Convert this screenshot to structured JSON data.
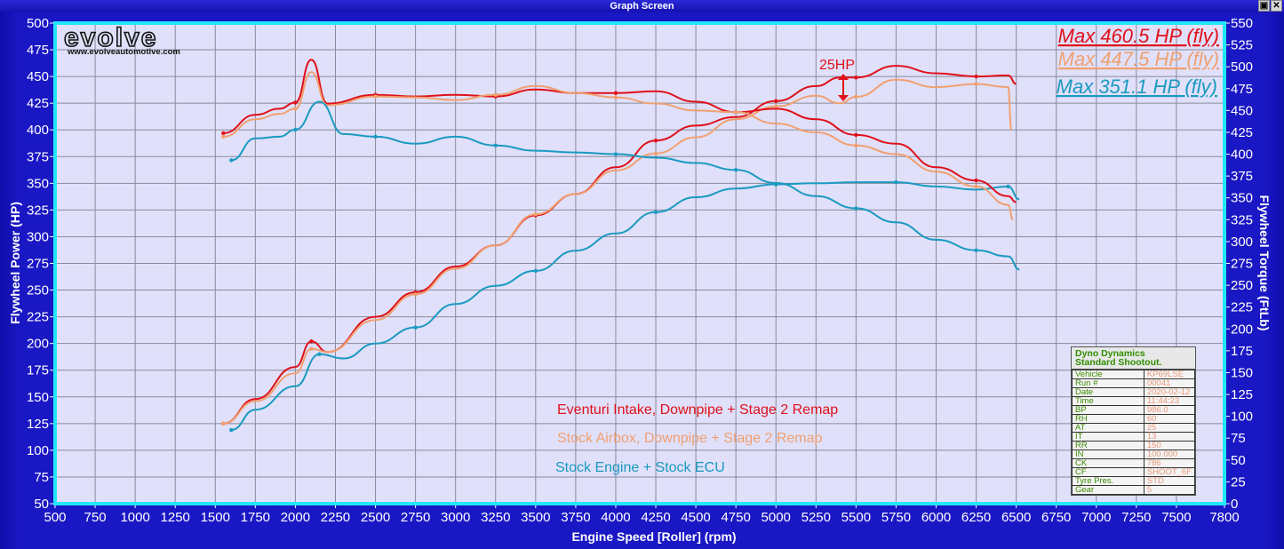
{
  "window": {
    "title": "Graph Screen",
    "controls": [
      "restore",
      "close"
    ]
  },
  "brand": {
    "logo_text": "evolve",
    "url": "www.evolveautomotive.com"
  },
  "annotation": {
    "label": "25HP",
    "arrow": "double-arrow",
    "color": "#e0101a"
  },
  "max_labels": [
    {
      "text": "Max 460.5 HP (fly)",
      "color": "#e0101a"
    },
    {
      "text": "Max 447.5 HP (fly)",
      "color": "#f0a070"
    },
    {
      "text": "Max 351.1 HP (fly)",
      "color": "#1a9ac0"
    }
  ],
  "legend": [
    {
      "text": "Eventuri Intake, Downpipe + Stage 2 Remap",
      "color": "#e0101a"
    },
    {
      "text": "Stock Airbox, Downpipe + Stage 2 Remap",
      "color": "#f0a070"
    },
    {
      "text": "Stock Engine + Stock ECU",
      "color": "#1a9ac0"
    }
  ],
  "info_box": {
    "title_line1": "Dyno Dynamics",
    "title_line2": "Standard Shootout.",
    "rows": [
      {
        "key": "Vehicle",
        "value": "KP69LSE"
      },
      {
        "key": "Run #",
        "value": "00041"
      },
      {
        "key": "Date",
        "value": "2020-02-12"
      },
      {
        "key": "Time",
        "value": "11:44:23"
      },
      {
        "key": "BP",
        "value": "986.0"
      },
      {
        "key": "RH",
        "value": "60"
      },
      {
        "key": "AT",
        "value": "25"
      },
      {
        "key": "IT",
        "value": "13"
      },
      {
        "key": "RR",
        "value": "150"
      },
      {
        "key": "IN",
        "value": "100.000"
      },
      {
        "key": "CK",
        "value": "786"
      },
      {
        "key": "CF",
        "value": "SHOOT_6F"
      },
      {
        "key": "Tyre Pres.",
        "value": "STD"
      },
      {
        "key": "Gear",
        "value": "5"
      }
    ]
  },
  "colors": {
    "frame_bg": "#1a17c4",
    "plot_bg": "#e0e0fa",
    "plot_border": "#20e8f8",
    "grid": "#8a8a9a",
    "eventuri": "#e0101a",
    "stock_airbox": "#f0a070",
    "stock": "#1a9ac0"
  },
  "chart_data": {
    "type": "line",
    "title": "Dyno Dynamics Standard Shootout",
    "xlabel": "Engine Speed [Roller] (rpm)",
    "ylabel": "Flywheel Power (HP)",
    "y2label": "Flywheel Torque (FtLb)",
    "xlim": [
      500,
      7800
    ],
    "ylim": [
      50,
      500
    ],
    "y2lim": [
      0,
      550
    ],
    "grid": true,
    "x_ticks": [
      500,
      750,
      1000,
      1250,
      1500,
      1750,
      2000,
      2250,
      2500,
      2750,
      3000,
      3250,
      3500,
      3750,
      4000,
      4250,
      4500,
      4750,
      5000,
      5250,
      5500,
      5750,
      6000,
      6250,
      6500,
      6750,
      7000,
      7250,
      7500,
      7800
    ],
    "y_ticks": [
      50,
      75,
      100,
      125,
      150,
      175,
      200,
      225,
      250,
      275,
      300,
      325,
      350,
      375,
      400,
      425,
      450,
      475,
      500
    ],
    "y2_ticks": [
      0,
      25,
      50,
      75,
      100,
      125,
      150,
      175,
      200,
      225,
      250,
      275,
      300,
      325,
      350,
      375,
      400,
      425,
      450,
      475,
      500,
      525,
      550
    ],
    "series": [
      {
        "name": "Eventuri Intake, Downpipe + Stage 2 Remap - Power (HP)",
        "axis": "left",
        "color": "#e0101a",
        "x": [
          1550,
          1750,
          2000,
          2100,
          2200,
          2500,
          2750,
          3000,
          3250,
          3500,
          3750,
          4000,
          4250,
          4500,
          4750,
          5000,
          5250,
          5400,
          5500,
          5750,
          6000,
          6250,
          6450,
          6500
        ],
        "values": [
          125,
          148,
          178,
          202,
          192,
          225,
          248,
          272,
          292,
          320,
          340,
          365,
          390,
          404,
          412,
          427,
          441,
          449,
          449,
          460,
          453,
          450,
          451,
          443
        ]
      },
      {
        "name": "Stock Airbox, Downpipe + Stage 2 Remap - Power (HP)",
        "axis": "left",
        "color": "#f0a070",
        "x": [
          1550,
          1750,
          2000,
          2100,
          2200,
          2500,
          2750,
          3000,
          3250,
          3500,
          3750,
          4000,
          4250,
          4500,
          4750,
          5000,
          5250,
          5400,
          5500,
          5750,
          6000,
          6250,
          6450,
          6470
        ],
        "values": [
          125,
          146,
          172,
          195,
          192,
          222,
          246,
          270,
          292,
          321,
          340,
          362,
          378,
          393,
          410,
          422,
          432,
          425,
          431,
          447,
          440,
          443,
          440,
          400
        ]
      },
      {
        "name": "Stock Engine + Stock ECU - Power (HP)",
        "axis": "left",
        "color": "#1a9ac0",
        "x": [
          1600,
          1750,
          2000,
          2150,
          2300,
          2500,
          2750,
          3000,
          3250,
          3500,
          3750,
          4000,
          4250,
          4500,
          4750,
          5000,
          5250,
          5500,
          5750,
          6000,
          6250,
          6450,
          6520
        ],
        "values": [
          119,
          138,
          160,
          190,
          186,
          200,
          215,
          237,
          254,
          268,
          287,
          303,
          323,
          337,
          345,
          349,
          350,
          351,
          351,
          347,
          344,
          347,
          335
        ]
      },
      {
        "name": "Eventuri Intake, Downpipe + Stage 2 Remap - Torque (FtLb)",
        "axis": "right",
        "color": "#e0101a",
        "x": [
          1550,
          1750,
          1900,
          2000,
          2100,
          2200,
          2500,
          2750,
          3000,
          3250,
          3500,
          3750,
          4000,
          4250,
          4500,
          4750,
          5000,
          5250,
          5500,
          5750,
          6000,
          6250,
          6450,
          6500
        ],
        "values": [
          424,
          445,
          452,
          459,
          508,
          458,
          468,
          466,
          468,
          466,
          474,
          470,
          470,
          472,
          460,
          448,
          452,
          440,
          422,
          412,
          385,
          370,
          352,
          345
        ]
      },
      {
        "name": "Stock Airbox, Downpipe + Stage 2 Remap - Torque (FtLb)",
        "axis": "right",
        "color": "#f0a070",
        "x": [
          1550,
          1750,
          1900,
          2000,
          2100,
          2200,
          2500,
          2750,
          3000,
          3250,
          3500,
          3750,
          4000,
          4250,
          4500,
          4750,
          5000,
          5250,
          5500,
          5750,
          6000,
          6250,
          6450,
          6480
        ],
        "values": [
          420,
          440,
          446,
          452,
          494,
          456,
          466,
          465,
          462,
          468,
          478,
          470,
          465,
          458,
          450,
          448,
          435,
          425,
          410,
          400,
          380,
          363,
          342,
          325
        ]
      },
      {
        "name": "Stock Engine + Stock ECU - Torque (FtLb)",
        "axis": "right",
        "color": "#1a9ac0",
        "x": [
          1600,
          1750,
          1900,
          2000,
          2150,
          2300,
          2500,
          2750,
          3000,
          3250,
          3500,
          3750,
          4000,
          4250,
          4500,
          4750,
          5000,
          5250,
          5500,
          5750,
          6000,
          6250,
          6450,
          6520
        ],
        "values": [
          393,
          418,
          420,
          428,
          460,
          423,
          420,
          412,
          420,
          410,
          404,
          402,
          400,
          396,
          390,
          382,
          367,
          352,
          338,
          322,
          302,
          290,
          283,
          268
        ]
      }
    ]
  }
}
